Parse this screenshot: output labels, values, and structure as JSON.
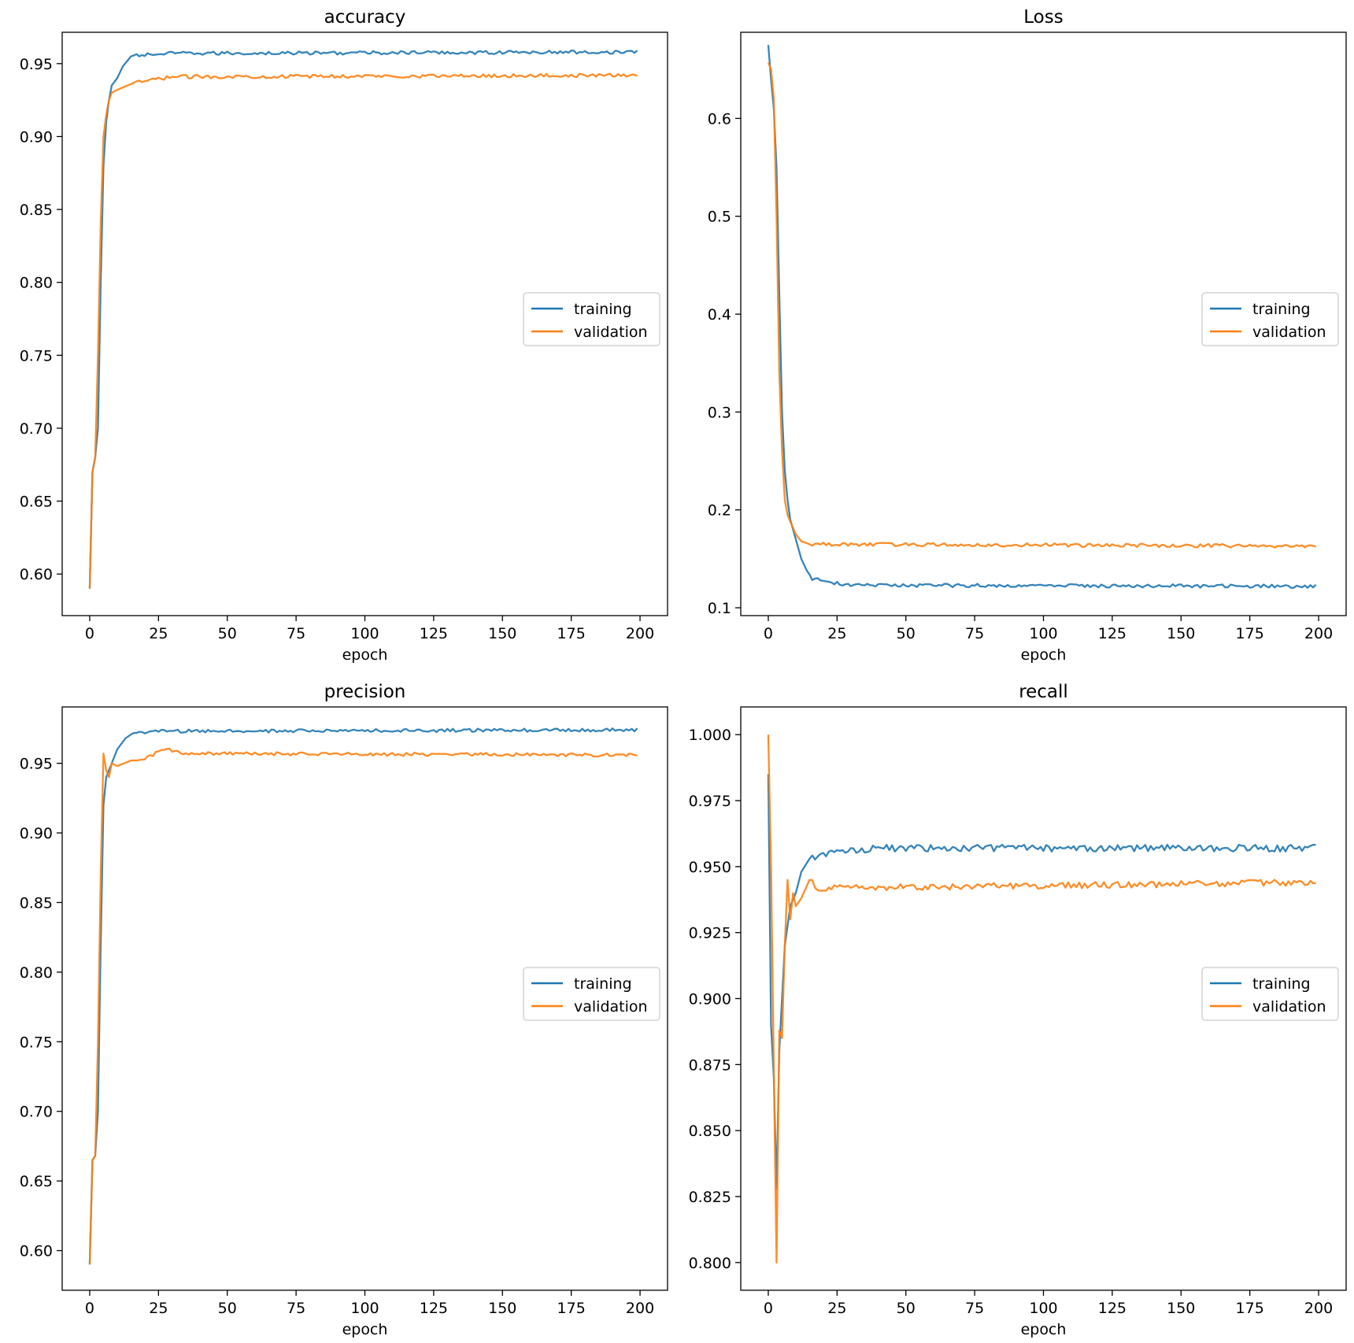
{
  "colors": {
    "training": "#1f77b4",
    "validation": "#ff7f0e",
    "axis": "#000000",
    "background": "#ffffff",
    "legend_border": "#cccccc"
  },
  "chart_data": [
    {
      "type": "line",
      "title": "accuracy",
      "xlabel": "epoch",
      "ylabel": "",
      "xlim": [
        -10,
        210
      ],
      "ylim": [
        0.5715,
        0.9715
      ],
      "xticks": [
        0,
        25,
        50,
        75,
        100,
        125,
        150,
        175,
        200
      ],
      "xtick_labels": [
        "0",
        "25",
        "50",
        "75",
        "100",
        "125",
        "150",
        "175",
        "200"
      ],
      "yticks": [
        0.6,
        0.65,
        0.7,
        0.75,
        0.8,
        0.85,
        0.9,
        0.95
      ],
      "ytick_labels": [
        "0.60",
        "0.65",
        "0.70",
        "0.75",
        "0.80",
        "0.85",
        "0.90",
        "0.95"
      ],
      "legend": {
        "location": "center-right",
        "entries": [
          "training",
          "validation"
        ]
      },
      "series": [
        {
          "name": "training",
          "profile": [
            [
              0,
              0.59
            ],
            [
              1,
              0.67
            ],
            [
              2,
              0.68
            ],
            [
              3,
              0.7
            ],
            [
              4,
              0.8
            ],
            [
              5,
              0.88
            ],
            [
              6,
              0.91
            ],
            [
              7,
              0.925
            ],
            [
              8,
              0.935
            ],
            [
              10,
              0.94
            ],
            [
              12,
              0.948
            ],
            [
              15,
              0.955
            ],
            [
              20,
              0.956
            ],
            [
              30,
              0.957
            ],
            [
              199,
              0.958
            ]
          ],
          "level": 0.958,
          "noise": 0.0012
        },
        {
          "name": "validation",
          "profile": [
            [
              0,
              0.59
            ],
            [
              1,
              0.67
            ],
            [
              2,
              0.68
            ],
            [
              3,
              0.75
            ],
            [
              4,
              0.84
            ],
            [
              5,
              0.9
            ],
            [
              6,
              0.915
            ],
            [
              7,
              0.925
            ],
            [
              8,
              0.93
            ],
            [
              10,
              0.932
            ],
            [
              15,
              0.936
            ],
            [
              20,
              0.938
            ],
            [
              30,
              0.941
            ],
            [
              199,
              0.942
            ]
          ],
          "level": 0.941,
          "noise": 0.0012
        }
      ]
    },
    {
      "type": "line",
      "title": "Loss",
      "xlabel": "epoch",
      "ylabel": "",
      "xlim": [
        -10,
        210
      ],
      "ylim": [
        0.092,
        0.688
      ],
      "xticks": [
        0,
        25,
        50,
        75,
        100,
        125,
        150,
        175,
        200
      ],
      "xtick_labels": [
        "0",
        "25",
        "50",
        "75",
        "100",
        "125",
        "150",
        "175",
        "200"
      ],
      "yticks": [
        0.1,
        0.2,
        0.3,
        0.4,
        0.5,
        0.6
      ],
      "ytick_labels": [
        "0.1",
        "0.2",
        "0.3",
        "0.4",
        "0.5",
        "0.6"
      ],
      "legend": {
        "location": "center-right",
        "entries": [
          "training",
          "validation"
        ]
      },
      "series": [
        {
          "name": "training",
          "profile": [
            [
              0,
              0.675
            ],
            [
              1,
              0.64
            ],
            [
              2,
              0.61
            ],
            [
              3,
              0.55
            ],
            [
              4,
              0.42
            ],
            [
              5,
              0.3
            ],
            [
              6,
              0.24
            ],
            [
              7,
              0.21
            ],
            [
              8,
              0.19
            ],
            [
              10,
              0.17
            ],
            [
              12,
              0.15
            ],
            [
              14,
              0.138
            ],
            [
              16,
              0.13
            ],
            [
              20,
              0.127
            ],
            [
              30,
              0.123
            ],
            [
              199,
              0.122
            ]
          ],
          "level": 0.122,
          "noise": 0.0018
        },
        {
          "name": "validation",
          "profile": [
            [
              0,
              0.657
            ],
            [
              1,
              0.65
            ],
            [
              2,
              0.62
            ],
            [
              3,
              0.5
            ],
            [
              4,
              0.34
            ],
            [
              5,
              0.26
            ],
            [
              6,
              0.21
            ],
            [
              7,
              0.195
            ],
            [
              8,
              0.188
            ],
            [
              10,
              0.175
            ],
            [
              12,
              0.168
            ],
            [
              15,
              0.165
            ],
            [
              199,
              0.163
            ]
          ],
          "level": 0.164,
          "noise": 0.0018
        }
      ]
    },
    {
      "type": "line",
      "title": "precision",
      "xlabel": "epoch",
      "ylabel": "",
      "xlim": [
        -10,
        210
      ],
      "ylim": [
        0.5715,
        0.9905
      ],
      "xticks": [
        0,
        25,
        50,
        75,
        100,
        125,
        150,
        175,
        200
      ],
      "xtick_labels": [
        "0",
        "25",
        "50",
        "75",
        "100",
        "125",
        "150",
        "175",
        "200"
      ],
      "yticks": [
        0.6,
        0.65,
        0.7,
        0.75,
        0.8,
        0.85,
        0.9,
        0.95
      ],
      "ytick_labels": [
        "0.60",
        "0.65",
        "0.70",
        "0.75",
        "0.80",
        "0.85",
        "0.90",
        "0.95"
      ],
      "legend": {
        "location": "center-right",
        "entries": [
          "training",
          "validation"
        ]
      },
      "series": [
        {
          "name": "training",
          "profile": [
            [
              0,
              0.59
            ],
            [
              1,
              0.665
            ],
            [
              2,
              0.668
            ],
            [
              3,
              0.7
            ],
            [
              4,
              0.82
            ],
            [
              5,
              0.92
            ],
            [
              6,
              0.94
            ],
            [
              7,
              0.945
            ],
            [
              8,
              0.95
            ],
            [
              10,
              0.96
            ],
            [
              13,
              0.968
            ],
            [
              16,
              0.972
            ],
            [
              25,
              0.973
            ],
            [
              199,
              0.974
            ]
          ],
          "level": 0.974,
          "noise": 0.0012
        },
        {
          "name": "validation",
          "profile": [
            [
              0,
              0.59
            ],
            [
              1,
              0.665
            ],
            [
              2,
              0.668
            ],
            [
              3,
              0.75
            ],
            [
              4,
              0.87
            ],
            [
              5,
              0.957
            ],
            [
              6,
              0.945
            ],
            [
              7,
              0.94
            ],
            [
              8,
              0.95
            ],
            [
              10,
              0.948
            ],
            [
              15,
              0.952
            ],
            [
              20,
              0.953
            ],
            [
              25,
              0.958
            ],
            [
              28,
              0.96
            ],
            [
              35,
              0.957
            ],
            [
              199,
              0.956
            ]
          ],
          "level": 0.957,
          "noise": 0.0012
        }
      ]
    },
    {
      "type": "line",
      "title": "recall",
      "xlabel": "epoch",
      "ylabel": "",
      "xlim": [
        -10,
        210
      ],
      "ylim": [
        0.7895,
        1.0105
      ],
      "xticks": [
        0,
        25,
        50,
        75,
        100,
        125,
        150,
        175,
        200
      ],
      "xtick_labels": [
        "0",
        "25",
        "50",
        "75",
        "100",
        "125",
        "150",
        "175",
        "200"
      ],
      "yticks": [
        0.8,
        0.825,
        0.85,
        0.875,
        0.9,
        0.925,
        0.95,
        0.975,
        1.0
      ],
      "ytick_labels": [
        "0.800",
        "0.825",
        "0.850",
        "0.875",
        "0.900",
        "0.925",
        "0.950",
        "0.975",
        "1.000"
      ],
      "legend": {
        "location": "center-right",
        "entries": [
          "training",
          "validation"
        ]
      },
      "series": [
        {
          "name": "training",
          "profile": [
            [
              0,
              0.985
            ],
            [
              1,
              0.89
            ],
            [
              2,
              0.87
            ],
            [
              3,
              0.828
            ],
            [
              4,
              0.88
            ],
            [
              5,
              0.9
            ],
            [
              6,
              0.92
            ],
            [
              8,
              0.935
            ],
            [
              10,
              0.94
            ],
            [
              12,
              0.948
            ],
            [
              15,
              0.953
            ],
            [
              20,
              0.955
            ],
            [
              40,
              0.957
            ],
            [
              199,
              0.957
            ]
          ],
          "level": 0.957,
          "noise": 0.0013
        },
        {
          "name": "validation",
          "profile": [
            [
              0,
              1.0
            ],
            [
              1,
              0.95
            ],
            [
              2,
              0.875
            ],
            [
              3,
              0.8
            ],
            [
              4,
              0.888
            ],
            [
              5,
              0.885
            ],
            [
              6,
              0.92
            ],
            [
              7,
              0.945
            ],
            [
              8,
              0.93
            ],
            [
              9,
              0.94
            ],
            [
              10,
              0.935
            ],
            [
              12,
              0.938
            ],
            [
              15,
              0.945
            ],
            [
              20,
              0.94
            ],
            [
              25,
              0.943
            ],
            [
              30,
              0.942
            ],
            [
              199,
              0.944
            ]
          ],
          "level": 0.944,
          "noise": 0.0012
        }
      ]
    }
  ]
}
